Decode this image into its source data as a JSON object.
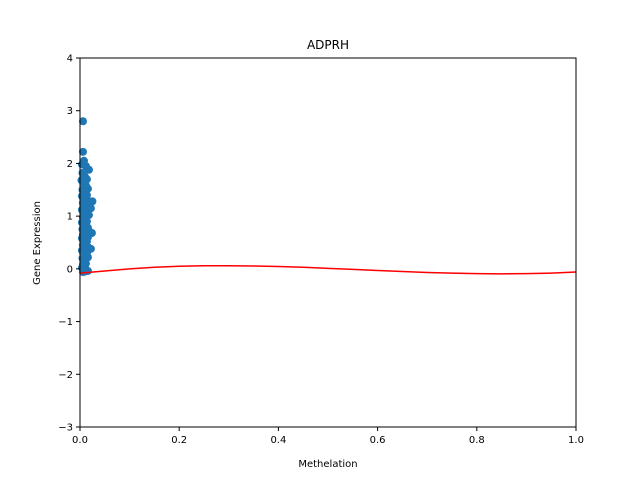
{
  "chart_data": {
    "type": "scatter",
    "title": "ADPRH",
    "xlabel": "Methelation",
    "ylabel": "Gene Expression",
    "xlim": [
      0.0,
      1.0
    ],
    "ylim": [
      -3,
      4
    ],
    "xticks": [
      "0.0",
      "0.2",
      "0.4",
      "0.6",
      "0.8",
      "1.0"
    ],
    "yticks": [
      "−3",
      "−2",
      "−1",
      "0",
      "1",
      "2",
      "3",
      "4"
    ],
    "grid": false,
    "series": [
      {
        "kind": "scatter",
        "color": "#1f77b4",
        "points": [
          [
            0.006,
            2.8
          ],
          [
            0.006,
            2.22
          ],
          [
            0.008,
            2.05
          ],
          [
            0.004,
            1.98
          ],
          [
            0.012,
            1.95
          ],
          [
            0.018,
            1.88
          ],
          [
            0.005,
            1.82
          ],
          [
            0.01,
            1.75
          ],
          [
            0.014,
            1.7
          ],
          [
            0.003,
            1.68
          ],
          [
            0.008,
            1.62
          ],
          [
            0.012,
            1.58
          ],
          [
            0.016,
            1.52
          ],
          [
            0.005,
            1.5
          ],
          [
            0.01,
            1.45
          ],
          [
            0.014,
            1.4
          ],
          [
            0.004,
            1.38
          ],
          [
            0.008,
            1.32
          ],
          [
            0.012,
            1.3
          ],
          [
            0.02,
            1.28
          ],
          [
            0.025,
            1.28
          ],
          [
            0.006,
            1.25
          ],
          [
            0.01,
            1.2
          ],
          [
            0.016,
            1.18
          ],
          [
            0.022,
            1.15
          ],
          [
            0.004,
            1.12
          ],
          [
            0.008,
            1.08
          ],
          [
            0.012,
            1.05
          ],
          [
            0.018,
            1.02
          ],
          [
            0.006,
            0.98
          ],
          [
            0.01,
            0.95
          ],
          [
            0.014,
            0.9
          ],
          [
            0.004,
            0.88
          ],
          [
            0.008,
            0.85
          ],
          [
            0.012,
            0.8
          ],
          [
            0.016,
            0.78
          ],
          [
            0.005,
            0.75
          ],
          [
            0.01,
            0.72
          ],
          [
            0.02,
            0.7
          ],
          [
            0.024,
            0.68
          ],
          [
            0.006,
            0.65
          ],
          [
            0.012,
            0.62
          ],
          [
            0.016,
            0.6
          ],
          [
            0.004,
            0.58
          ],
          [
            0.008,
            0.55
          ],
          [
            0.014,
            0.52
          ],
          [
            0.01,
            0.48
          ],
          [
            0.006,
            0.45
          ],
          [
            0.012,
            0.42
          ],
          [
            0.018,
            0.4
          ],
          [
            0.022,
            0.38
          ],
          [
            0.004,
            0.35
          ],
          [
            0.008,
            0.32
          ],
          [
            0.014,
            0.3
          ],
          [
            0.01,
            0.25
          ],
          [
            0.016,
            0.22
          ],
          [
            0.005,
            0.2
          ],
          [
            0.008,
            0.15
          ],
          [
            0.012,
            0.1
          ],
          [
            0.006,
            0.08
          ],
          [
            0.01,
            0.05
          ],
          [
            0.004,
            0.02
          ],
          [
            0.008,
            -0.02
          ],
          [
            0.012,
            -0.03
          ],
          [
            0.016,
            -0.04
          ],
          [
            0.006,
            -0.06
          ],
          [
            0.01,
            -0.05
          ]
        ]
      },
      {
        "kind": "line",
        "color": "#ff0000",
        "points": [
          [
            0.0,
            -0.08
          ],
          [
            0.05,
            -0.04
          ],
          [
            0.1,
            0.0
          ],
          [
            0.15,
            0.03
          ],
          [
            0.2,
            0.05
          ],
          [
            0.25,
            0.06
          ],
          [
            0.3,
            0.06
          ],
          [
            0.35,
            0.055
          ],
          [
            0.4,
            0.045
          ],
          [
            0.45,
            0.03
          ],
          [
            0.5,
            0.01
          ],
          [
            0.55,
            -0.01
          ],
          [
            0.6,
            -0.03
          ],
          [
            0.65,
            -0.05
          ],
          [
            0.7,
            -0.07
          ],
          [
            0.75,
            -0.08
          ],
          [
            0.8,
            -0.09
          ],
          [
            0.85,
            -0.095
          ],
          [
            0.9,
            -0.09
          ],
          [
            0.95,
            -0.08
          ],
          [
            1.0,
            -0.06
          ]
        ]
      }
    ]
  }
}
